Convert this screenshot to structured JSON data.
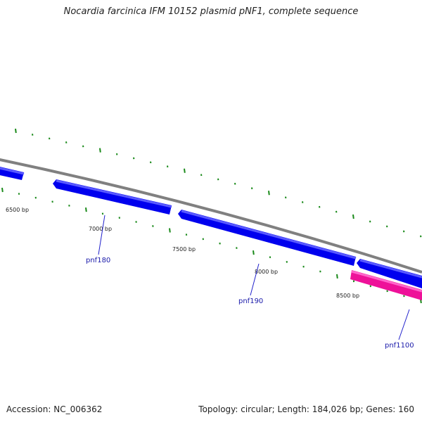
{
  "title": "Nocardia farcinica IFM 10152 plasmid pNF1, complete sequence",
  "footer": {
    "accession": "Accession: NC_006362",
    "summary": "Topology: circular; Length: 184,026 bp; Genes: 160"
  },
  "colors": {
    "backbone": "#808080",
    "gene_forward": "#0000ee",
    "gene_forward_highlight": "#5a5aff",
    "gene_reverse": "#ee1199",
    "gene_reverse_highlight": "#ff66cc",
    "tick": "#1a8a1a",
    "label_line": "#2222cc"
  },
  "scale_labels": [
    {
      "bp": 6500,
      "text": "6500 bp"
    },
    {
      "bp": 7000,
      "text": "7000 bp"
    },
    {
      "bp": 7500,
      "text": "7500 bp"
    },
    {
      "bp": 8000,
      "text": "8000 bp"
    },
    {
      "bp": 8500,
      "text": "8500 bp"
    }
  ],
  "genes": [
    {
      "name": "",
      "strand": "forward"
    },
    {
      "name": "pnf180",
      "strand": "forward"
    },
    {
      "name": "pnf190",
      "strand": "forward"
    },
    {
      "name": "",
      "strand": "forward"
    },
    {
      "name": "pnf1100",
      "strand": "reverse"
    }
  ]
}
